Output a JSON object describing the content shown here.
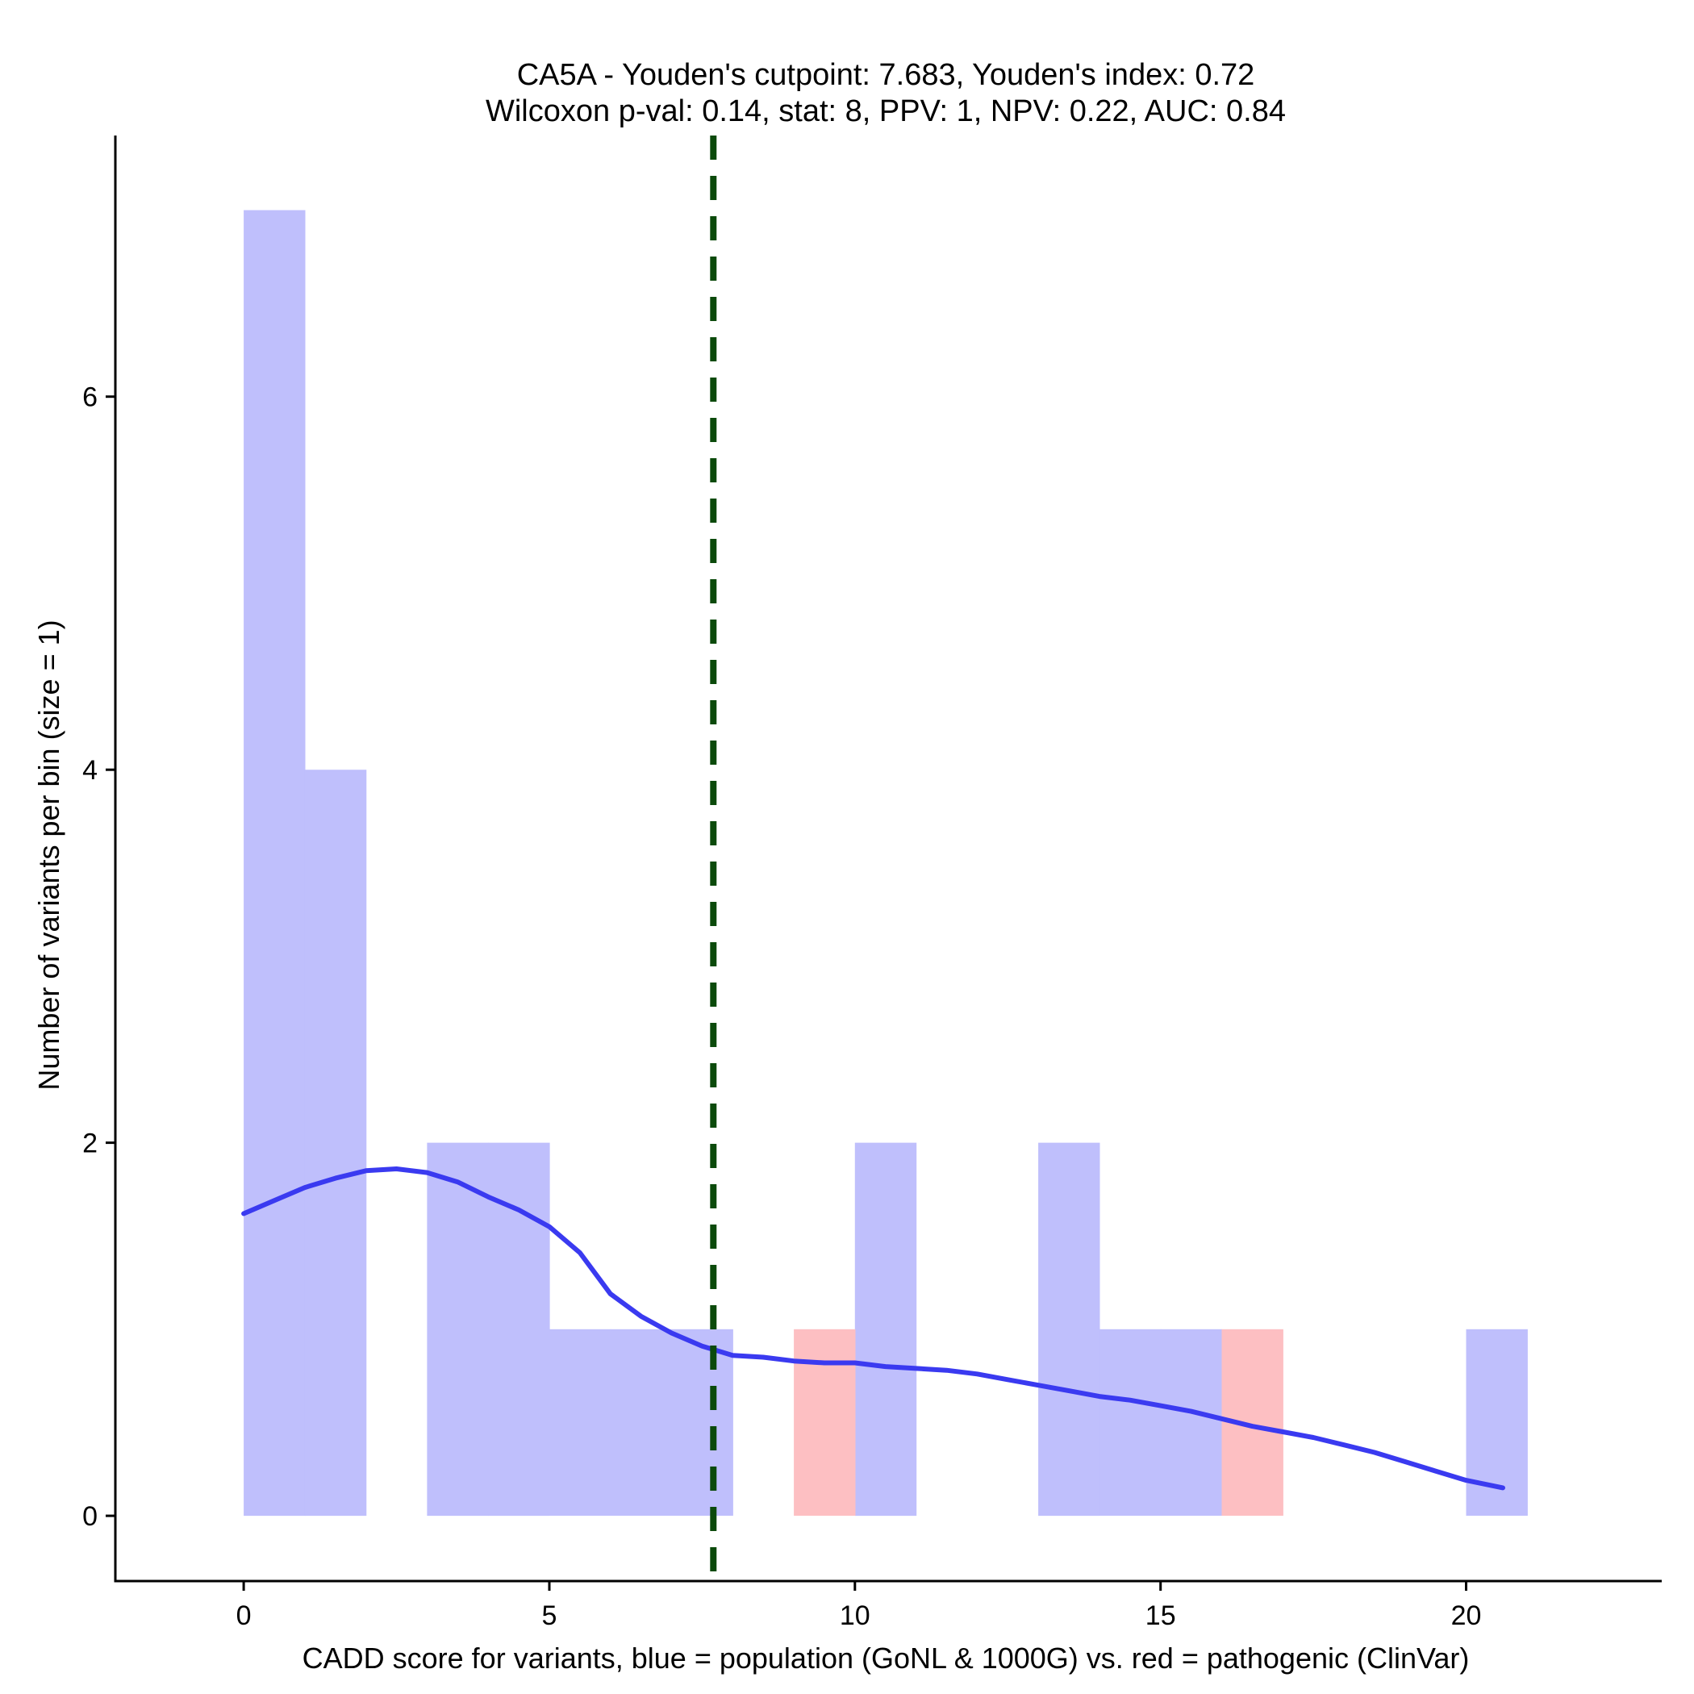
{
  "chart_data": {
    "type": "bar",
    "title_line1": "CA5A - Youden's cutpoint: 7.683, Youden's index: 0.72",
    "title_line2": "Wilcoxon p-val: 0.14, stat: 8, PPV: 1, NPV: 0.22, AUC: 0.84",
    "xlabel": "CADD score for variants, blue = population (GoNL & 1000G) vs. red = pathogenic (ClinVar)",
    "ylabel": "Number of variants per bin (size = 1)",
    "xlim": [
      -2.1,
      23.2
    ],
    "ylim": [
      -0.35,
      7.4
    ],
    "x_ticks": [
      0,
      5,
      10,
      15,
      20
    ],
    "x_tick_labels": [
      "0",
      "5",
      "10",
      "15",
      "20"
    ],
    "y_ticks": [
      0,
      2,
      4,
      6
    ],
    "y_tick_labels": [
      "0",
      "2",
      "4",
      "6"
    ],
    "bin_width": 1,
    "series": [
      {
        "name": "population (GoNL & 1000G)",
        "color": "#bfbffc",
        "bins": [
          {
            "start": 0,
            "count": 7
          },
          {
            "start": 1,
            "count": 4
          },
          {
            "start": 3,
            "count": 2
          },
          {
            "start": 4,
            "count": 2
          },
          {
            "start": 5,
            "count": 1
          },
          {
            "start": 6,
            "count": 1
          },
          {
            "start": 7,
            "count": 1
          },
          {
            "start": 10,
            "count": 2
          },
          {
            "start": 13,
            "count": 2
          },
          {
            "start": 14,
            "count": 1
          },
          {
            "start": 15,
            "count": 1
          },
          {
            "start": 20,
            "count": 1
          }
        ]
      },
      {
        "name": "pathogenic (ClinVar)",
        "color": "#fdbfc2",
        "bins": [
          {
            "start": 9,
            "count": 1
          },
          {
            "start": 16,
            "count": 1
          }
        ]
      }
    ],
    "density_line": {
      "color": "#3a3af0",
      "x": [
        0,
        0.5,
        1,
        1.5,
        2,
        2.5,
        3,
        3.5,
        4,
        4.5,
        5,
        5.5,
        6,
        6.5,
        7,
        7.5,
        8,
        8.5,
        9,
        9.5,
        10,
        10.5,
        11,
        11.5,
        12,
        12.5,
        13,
        13.5,
        14,
        14.5,
        15,
        15.5,
        16,
        16.5,
        17,
        17.5,
        18,
        18.5,
        19,
        19.5,
        20,
        20.6
      ],
      "y": [
        1.62,
        1.69,
        1.76,
        1.81,
        1.85,
        1.86,
        1.84,
        1.79,
        1.71,
        1.64,
        1.55,
        1.41,
        1.19,
        1.07,
        0.98,
        0.91,
        0.86,
        0.85,
        0.83,
        0.82,
        0.82,
        0.8,
        0.79,
        0.78,
        0.76,
        0.73,
        0.7,
        0.67,
        0.64,
        0.62,
        0.59,
        0.56,
        0.52,
        0.48,
        0.45,
        0.42,
        0.38,
        0.34,
        0.29,
        0.24,
        0.19,
        0.15
      ]
    },
    "cutpoint": {
      "x": 7.683,
      "color": "#0b4a0b",
      "style": "dashed"
    }
  }
}
